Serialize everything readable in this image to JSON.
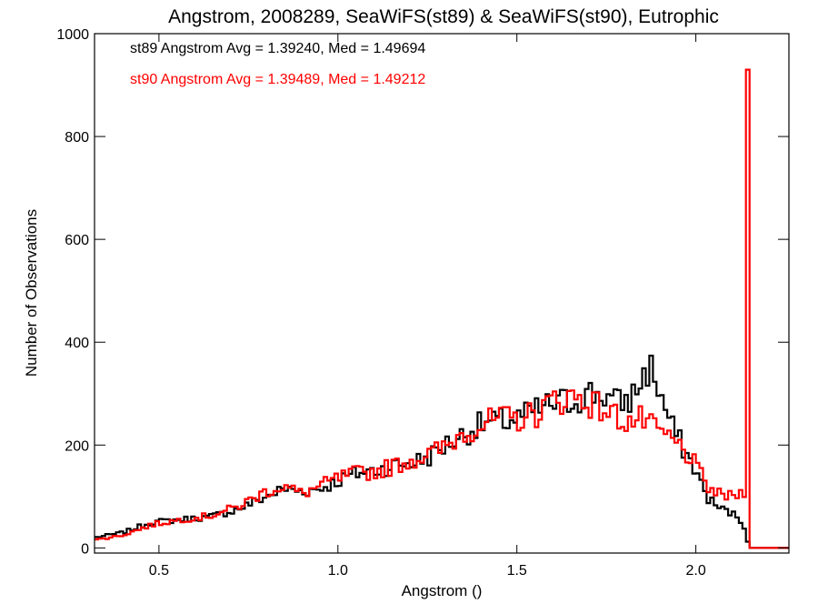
{
  "chart_data": {
    "type": "line",
    "title": "Angstrom, 2008289, SeaWiFS(st89) & SeaWiFS(st90), Eutrophic",
    "xlabel": "Angstrom ()",
    "ylabel": "Number of Observations",
    "xlim": [
      0.32,
      2.26
    ],
    "ylim": [
      -10,
      1000
    ],
    "x_ticks": [
      "0.5",
      "1.0",
      "1.5",
      "2.0"
    ],
    "y_ticks": [
      "0",
      "200",
      "400",
      "600",
      "800",
      "1000"
    ],
    "x_tick_values": [
      0.5,
      1.0,
      1.5,
      2.0
    ],
    "y_tick_values": [
      0,
      200,
      400,
      600,
      800,
      1000
    ],
    "grid": false,
    "step_width": 0.01,
    "annotations": [
      {
        "text": "st89 Angstrom Avg = 1.39240, Med = 1.49694",
        "color": "#000000"
      },
      {
        "text": "st90 Angstrom Avg = 1.39489, Med = 1.49212",
        "color": "#ff0000"
      }
    ],
    "series": [
      {
        "name": "st89",
        "color": "#000000",
        "x": [
          0.32,
          0.4,
          0.48,
          0.56,
          0.64,
          0.72,
          0.8,
          0.85,
          0.9,
          0.95,
          1.0,
          1.05,
          1.1,
          1.15,
          1.2,
          1.25,
          1.3,
          1.35,
          1.4,
          1.45,
          1.5,
          1.55,
          1.6,
          1.65,
          1.7,
          1.74,
          1.78,
          1.82,
          1.85,
          1.87,
          1.88,
          1.9,
          1.93,
          1.96,
          2.0,
          2.03,
          2.06,
          2.09,
          2.12,
          2.135,
          2.15,
          2.2,
          2.26
        ],
        "values": [
          20,
          30,
          50,
          55,
          60,
          75,
          100,
          115,
          110,
          115,
          130,
          145,
          150,
          160,
          165,
          175,
          200,
          220,
          240,
          245,
          250,
          265,
          280,
          285,
          300,
          300,
          280,
          290,
          330,
          350,
          345,
          300,
          240,
          200,
          150,
          100,
          80,
          70,
          60,
          40,
          0,
          0,
          0
        ]
      },
      {
        "name": "st90",
        "color": "#ff0000",
        "x": [
          0.32,
          0.4,
          0.48,
          0.56,
          0.64,
          0.72,
          0.8,
          0.85,
          0.9,
          0.95,
          1.0,
          1.05,
          1.1,
          1.15,
          1.2,
          1.25,
          1.3,
          1.35,
          1.4,
          1.45,
          1.5,
          1.55,
          1.6,
          1.65,
          1.7,
          1.74,
          1.78,
          1.82,
          1.85,
          1.87,
          1.88,
          1.9,
          1.93,
          1.96,
          2.0,
          2.03,
          2.06,
          2.09,
          2.12,
          2.135,
          2.14,
          2.145,
          2.155,
          2.2,
          2.26
        ],
        "values": [
          15,
          25,
          45,
          55,
          62,
          80,
          110,
          120,
          105,
          120,
          135,
          145,
          148,
          158,
          170,
          180,
          195,
          225,
          240,
          250,
          250,
          260,
          285,
          295,
          285,
          270,
          255,
          245,
          250,
          240,
          230,
          225,
          210,
          195,
          160,
          120,
          105,
          100,
          105,
          110,
          930,
          930,
          0,
          0,
          0
        ]
      }
    ]
  }
}
